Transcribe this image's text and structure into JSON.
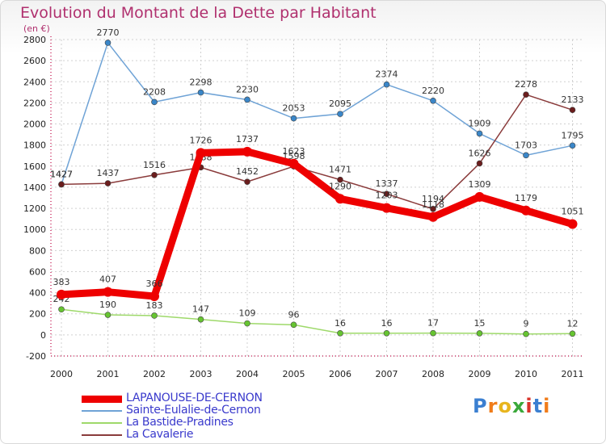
{
  "title": "Evolution du Montant de la Dette par Habitant",
  "unit_label": "(en €)",
  "logo": {
    "letters": [
      "P",
      "r",
      "o",
      "x",
      "i",
      "t",
      "i"
    ],
    "colors": [
      "#3b7fd1",
      "#f07c1a",
      "#e8b51e",
      "#3aa83a",
      "#d9342b",
      "#3b7fd1",
      "#f07c1a"
    ]
  },
  "chart_data": {
    "type": "line",
    "categories": [
      "2000",
      "2001",
      "2002",
      "2003",
      "2004",
      "2005",
      "2006",
      "2007",
      "2008",
      "2009",
      "2010",
      "2011"
    ],
    "ylim": [
      -200,
      2800
    ],
    "yticks": [
      -200,
      0,
      200,
      400,
      600,
      800,
      1000,
      1200,
      1400,
      1600,
      1800,
      2000,
      2200,
      2400,
      2600,
      2800
    ],
    "grid": true,
    "legend_position": "bottom-left",
    "series": [
      {
        "name": "Sainte-Eulalie-de-Cernon",
        "color": "#6fa3d6",
        "marker": "#3a86c8",
        "values": [
          1427,
          2770,
          2208,
          2298,
          2230,
          2053,
          2095,
          2374,
          2220,
          1909,
          1703,
          1795
        ],
        "labels": [
          "1427",
          "2770",
          "2208",
          "2298",
          "2230",
          "2053",
          "2095",
          "2374",
          "2220",
          "1909",
          "1703",
          "1795"
        ]
      },
      {
        "name": "La Cavalerie",
        "color": "#8a3b3b",
        "marker": "#6b1d1d",
        "values": [
          1427,
          1437,
          1516,
          1588,
          1452,
          1598,
          1471,
          1337,
          1194,
          1626,
          2278,
          2133
        ],
        "labels": [
          "1427",
          "1437",
          "1516",
          "1588",
          "1452",
          "1598",
          "1471",
          "1337",
          "1194",
          "1626",
          "2278",
          "2133"
        ]
      },
      {
        "name": "La Bastide-Pradines",
        "color": "#9ed96a",
        "marker": "#66c431",
        "values": [
          242,
          190,
          183,
          147,
          109,
          96,
          16,
          16,
          17,
          15,
          9,
          12
        ],
        "labels": [
          "242",
          "190",
          "183",
          "147",
          "109",
          "96",
          "16",
          "16",
          "17",
          "15",
          "9",
          "12"
        ]
      },
      {
        "name": "LAPANOUSE-DE-CERNON",
        "color": "#ee0000",
        "marker": "#ee0000",
        "values": [
          383,
          407,
          366,
          1726,
          1737,
          1623,
          1290,
          1203,
          1118,
          1309,
          1179,
          1051
        ],
        "labels": [
          "383",
          "407",
          "366",
          "1726",
          "1737",
          "1623",
          "1290",
          "1203",
          "1118",
          "1309",
          "1179",
          "1051"
        ]
      }
    ],
    "legend": [
      "LAPANOUSE-DE-CERNON",
      "Sainte-Eulalie-de-Cernon",
      "La Bastide-Pradines",
      "La Cavalerie"
    ]
  }
}
